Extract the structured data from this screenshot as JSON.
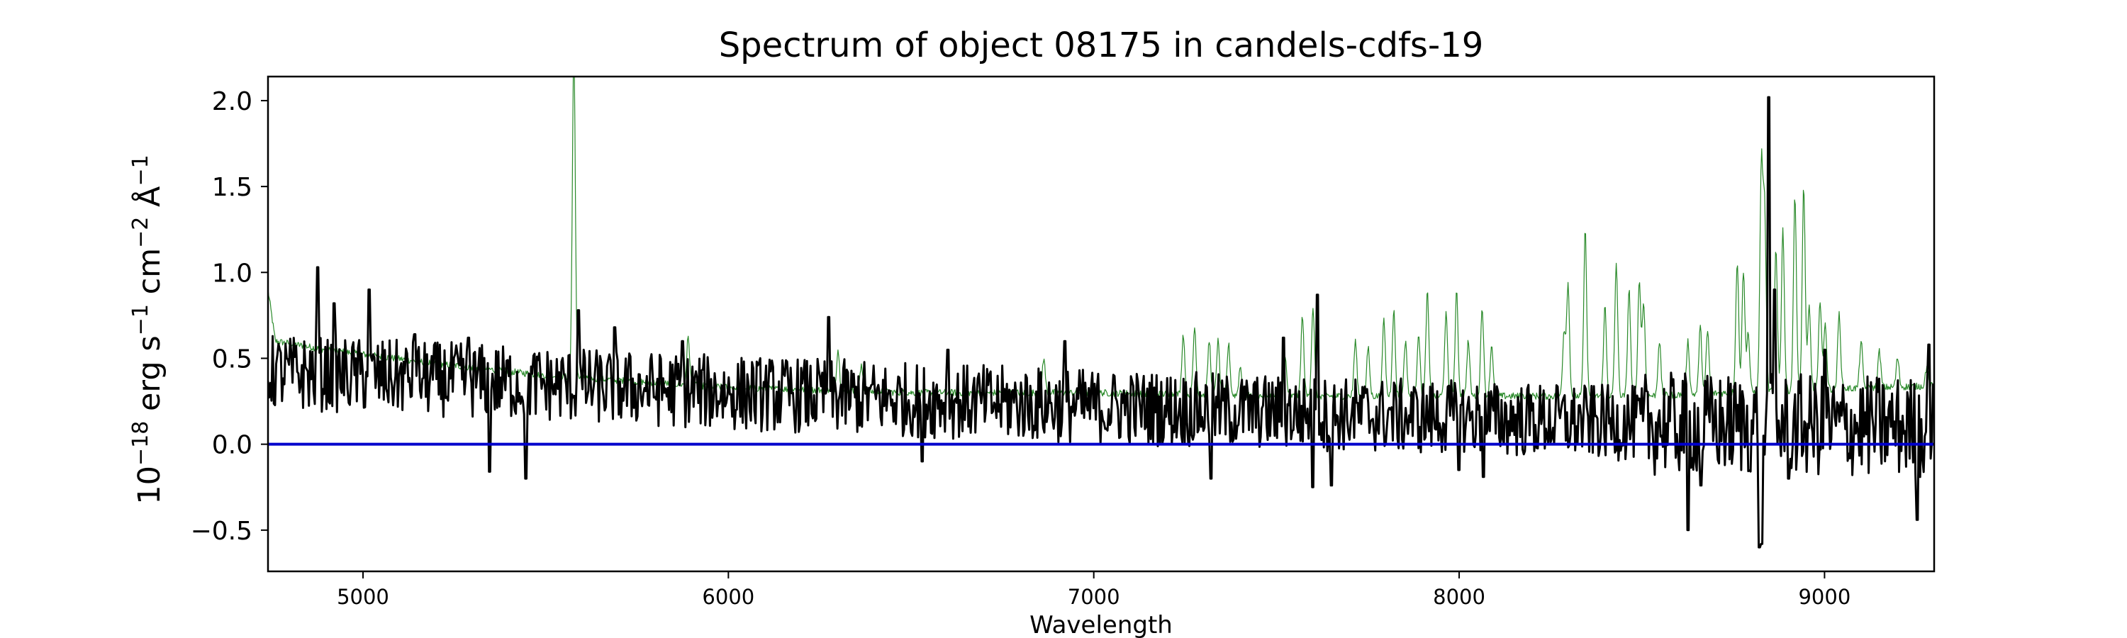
{
  "chart_data": {
    "type": "line",
    "title": "Spectrum of object 08175 in candels-cdfs-19",
    "xlabel": "Wavelength",
    "ylabel_parts": [
      "10",
      "−18",
      " erg s",
      "−1",
      " cm",
      "−2",
      " Å",
      "−1"
    ],
    "xlim": [
      4740,
      9300
    ],
    "ylim": [
      -0.74,
      2.14
    ],
    "xticks": [
      5000,
      6000,
      7000,
      8000,
      9000
    ],
    "yticks": [
      -0.5,
      0.0,
      0.5,
      1.0,
      1.5,
      2.0
    ],
    "ytick_labels": [
      "−0.5",
      "0.0",
      "0.5",
      "1.0",
      "1.5",
      "2.0"
    ],
    "grid": false,
    "legend": false,
    "series": [
      {
        "color": "#2a8a2a",
        "linewidth": 1.2,
        "style": "sky",
        "baseline": [
          [
            4740,
            0.9
          ],
          [
            4760,
            0.6
          ],
          [
            4900,
            0.55
          ],
          [
            5200,
            0.47
          ],
          [
            5500,
            0.4
          ],
          [
            6000,
            0.33
          ],
          [
            6500,
            0.3
          ],
          [
            7000,
            0.3
          ],
          [
            7500,
            0.28
          ],
          [
            8000,
            0.28
          ],
          [
            8500,
            0.28
          ],
          [
            9000,
            0.32
          ],
          [
            9300,
            0.34
          ]
        ],
        "lines": [
          [
            5577,
            2.3
          ],
          [
            5890,
            0.62
          ],
          [
            6300,
            0.55
          ],
          [
            6364,
            0.45
          ],
          [
            6863,
            0.5
          ],
          [
            7245,
            0.64
          ],
          [
            7276,
            0.68
          ],
          [
            7316,
            0.6
          ],
          [
            7340,
            0.6
          ],
          [
            7369,
            0.58
          ],
          [
            7401,
            0.45
          ],
          [
            7524,
            0.5
          ],
          [
            7571,
            0.74
          ],
          [
            7600,
            0.8
          ],
          [
            7716,
            0.6
          ],
          [
            7751,
            0.56
          ],
          [
            7794,
            0.72
          ],
          [
            7821,
            0.78
          ],
          [
            7853,
            0.6
          ],
          [
            7889,
            0.65
          ],
          [
            7913,
            0.88
          ],
          [
            7964,
            0.76
          ],
          [
            7993,
            0.88
          ],
          [
            8025,
            0.6
          ],
          [
            8063,
            0.8
          ],
          [
            8089,
            0.58
          ],
          [
            8287,
            0.65
          ],
          [
            8298,
            0.93
          ],
          [
            8345,
            1.24
          ],
          [
            8399,
            0.8
          ],
          [
            8430,
            1.05
          ],
          [
            8465,
            0.9
          ],
          [
            8493,
            0.95
          ],
          [
            8505,
            0.82
          ],
          [
            8548,
            0.6
          ],
          [
            8626,
            0.6
          ],
          [
            8660,
            0.68
          ],
          [
            8680,
            0.66
          ],
          [
            8761,
            1.06
          ],
          [
            8778,
            1.01
          ],
          [
            8791,
            0.65
          ],
          [
            8827,
            1.6
          ],
          [
            8836,
            1.35
          ],
          [
            8867,
            1.14
          ],
          [
            8886,
            1.25
          ],
          [
            8919,
            1.45
          ],
          [
            8943,
            1.5
          ],
          [
            8958,
            0.8
          ],
          [
            8988,
            0.84
          ],
          [
            9002,
            0.7
          ],
          [
            9040,
            0.76
          ],
          [
            9100,
            0.6
          ],
          [
            9150,
            0.54
          ],
          [
            9200,
            0.5
          ],
          [
            9280,
            0.45
          ]
        ]
      },
      {
        "color": "#000000",
        "linewidth": 3,
        "style": "noisy",
        "baseline": [
          [
            4740,
            0.42
          ],
          [
            5200,
            0.38
          ],
          [
            6000,
            0.3
          ],
          [
            7000,
            0.22
          ],
          [
            7600,
            0.18
          ],
          [
            8500,
            0.12
          ],
          [
            9300,
            0.1
          ]
        ],
        "spikes": [
          [
            4875,
            1.03
          ],
          [
            4920,
            0.82
          ],
          [
            5018,
            0.9
          ],
          [
            5140,
            0.64
          ],
          [
            5290,
            0.62
          ],
          [
            5346,
            -0.16
          ],
          [
            5445,
            -0.2
          ],
          [
            5591,
            0.78
          ],
          [
            5688,
            0.68
          ],
          [
            5873,
            0.6
          ],
          [
            6275,
            0.74
          ],
          [
            6530,
            -0.1
          ],
          [
            6600,
            0.55
          ],
          [
            6920,
            0.6
          ],
          [
            7320,
            -0.2
          ],
          [
            7520,
            0.62
          ],
          [
            7600,
            -0.25
          ],
          [
            7613,
            0.87
          ],
          [
            7650,
            -0.24
          ],
          [
            8000,
            -0.15
          ],
          [
            8065,
            -0.19
          ],
          [
            8625,
            -0.5
          ],
          [
            8660,
            -0.24
          ],
          [
            8820,
            -0.6
          ],
          [
            8828,
            -0.58
          ],
          [
            8848,
            2.02
          ],
          [
            8862,
            0.9
          ],
          [
            8900,
            -0.2
          ],
          [
            9000,
            0.55
          ],
          [
            9255,
            -0.44
          ],
          [
            9285,
            0.58
          ]
        ]
      },
      {
        "color": "#0000cc",
        "linewidth": 4,
        "style": "flat",
        "value": 0.0
      }
    ]
  }
}
